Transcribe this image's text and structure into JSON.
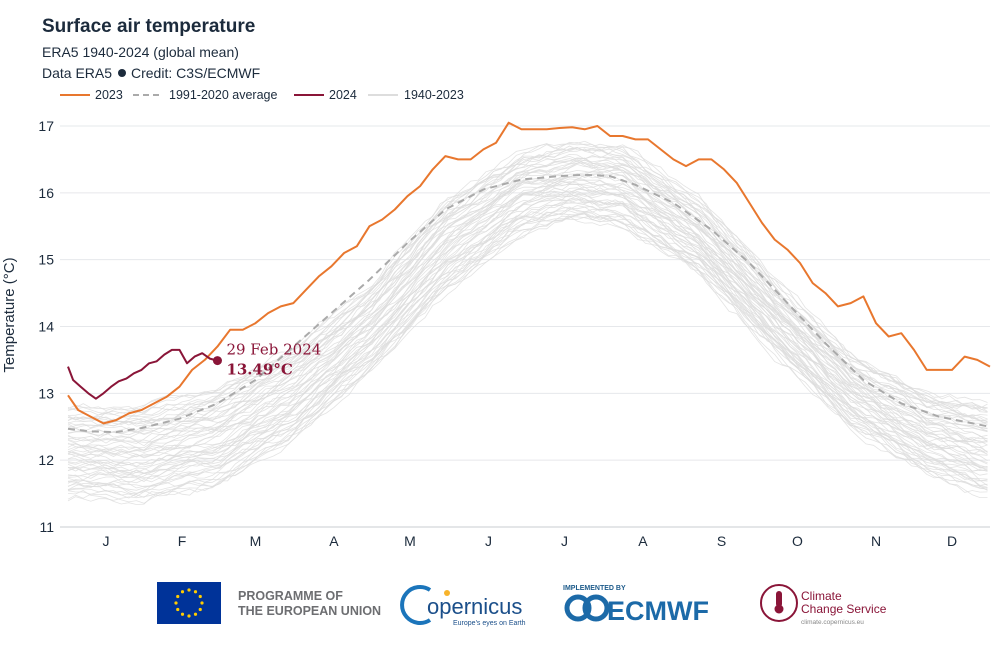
{
  "header": {
    "title": "Surface air temperature",
    "subtitle": "ERA5 1940-2024 (global mean)",
    "credit_prefix": "Data ERA5",
    "credit_suffix": "Credit: C3S/ECMWF"
  },
  "legend": {
    "items": [
      {
        "label": "2023",
        "color": "#e8772e",
        "style": "solid"
      },
      {
        "label": "1991-2020 average",
        "color": "#aaaaaa",
        "style": "dashed"
      },
      {
        "label": "2024",
        "color": "#8a1538",
        "style": "solid"
      },
      {
        "label": "1940-2023",
        "color": "#dddddd",
        "style": "solid"
      }
    ]
  },
  "annotation": {
    "date": "29 Feb 2024",
    "value": "13.49°C"
  },
  "footer": {
    "eu_line1": "PROGRAMME OF",
    "eu_line2": "THE EUROPEAN UNION",
    "copernicus_name": "opernicus",
    "copernicus_tagline": "Europe's eyes on Earth",
    "ecmwf_implemented": "IMPLEMENTED BY",
    "ecmwf_name": "ECMWF",
    "c3s_line1": "Climate",
    "c3s_line2": "Change Service",
    "c3s_url": "climate.copernicus.eu"
  },
  "chart_data": {
    "type": "line",
    "ylabel": "Temperature (°C)",
    "xlabel": "",
    "ylim": [
      11,
      17.2
    ],
    "yticks": [
      11,
      12,
      13,
      14,
      15,
      16,
      17
    ],
    "xlim": [
      1,
      365
    ],
    "month_labels": [
      "J",
      "F",
      "M",
      "A",
      "M",
      "J",
      "J",
      "A",
      "S",
      "O",
      "N",
      "D"
    ],
    "month_label_days": [
      16,
      46,
      75,
      106,
      136,
      167,
      197,
      228,
      259,
      289,
      320,
      350
    ],
    "grid": true,
    "legend_position": "top-left",
    "band_1940_2023": {
      "x": [
        1,
        30,
        60,
        90,
        120,
        150,
        180,
        200,
        220,
        250,
        280,
        310,
        340,
        365
      ],
      "low": [
        11.45,
        11.4,
        11.6,
        12.3,
        13.3,
        14.5,
        15.4,
        15.6,
        15.5,
        14.8,
        13.6,
        12.5,
        11.8,
        11.45
      ],
      "high": [
        12.8,
        12.8,
        13.1,
        13.7,
        14.6,
        15.9,
        16.6,
        16.75,
        16.7,
        15.9,
        14.7,
        13.6,
        13.0,
        12.85
      ]
    },
    "series": [
      {
        "name": "2023",
        "color": "#e8772e",
        "x": [
          1,
          5,
          10,
          15,
          20,
          25,
          30,
          35,
          40,
          45,
          50,
          55,
          60,
          65,
          70,
          75,
          80,
          85,
          90,
          95,
          100,
          105,
          110,
          115,
          120,
          125,
          130,
          135,
          140,
          145,
          150,
          155,
          160,
          165,
          170,
          175,
          180,
          185,
          190,
          195,
          200,
          205,
          210,
          215,
          220,
          225,
          230,
          235,
          240,
          245,
          250,
          255,
          260,
          265,
          270,
          275,
          280,
          285,
          290,
          295,
          300,
          305,
          310,
          315,
          320,
          325,
          330,
          335,
          340,
          345,
          350,
          355,
          360,
          365
        ],
        "y": [
          12.97,
          12.75,
          12.65,
          12.55,
          12.6,
          12.7,
          12.75,
          12.85,
          12.95,
          13.1,
          13.35,
          13.5,
          13.7,
          13.95,
          13.95,
          14.05,
          14.2,
          14.3,
          14.35,
          14.55,
          14.75,
          14.9,
          15.1,
          15.2,
          15.5,
          15.6,
          15.75,
          15.95,
          16.1,
          16.35,
          16.55,
          16.5,
          16.5,
          16.65,
          16.75,
          17.05,
          16.95,
          16.95,
          16.95,
          16.97,
          16.98,
          16.95,
          17.0,
          16.85,
          16.85,
          16.8,
          16.8,
          16.65,
          16.5,
          16.4,
          16.5,
          16.5,
          16.35,
          16.15,
          15.85,
          15.55,
          15.3,
          15.15,
          14.95,
          14.65,
          14.5,
          14.3,
          14.35,
          14.45,
          14.05,
          13.85,
          13.9,
          13.65,
          13.35,
          13.35,
          13.35,
          13.55,
          13.5,
          13.4
        ]
      },
      {
        "name": "1991-2020 average",
        "color": "#aaaaaa",
        "dashed": true,
        "x": [
          1,
          10,
          20,
          30,
          45,
          60,
          75,
          90,
          105,
          120,
          135,
          150,
          165,
          180,
          195,
          205,
          215,
          225,
          240,
          255,
          270,
          285,
          300,
          315,
          330,
          345,
          365
        ],
        "y": [
          12.47,
          12.43,
          12.42,
          12.48,
          12.62,
          12.85,
          13.2,
          13.7,
          14.2,
          14.7,
          15.25,
          15.75,
          16.05,
          16.2,
          16.25,
          16.27,
          16.25,
          16.12,
          15.85,
          15.45,
          14.95,
          14.35,
          13.75,
          13.2,
          12.85,
          12.65,
          12.5
        ]
      },
      {
        "name": "2024",
        "color": "#8a1538",
        "x": [
          1,
          3,
          6,
          9,
          12,
          15,
          18,
          21,
          24,
          27,
          30,
          33,
          36,
          39,
          42,
          45,
          48,
          51,
          54,
          57,
          60
        ],
        "y": [
          13.4,
          13.2,
          13.1,
          13.0,
          12.92,
          13.0,
          13.1,
          13.18,
          13.22,
          13.3,
          13.35,
          13.45,
          13.48,
          13.58,
          13.65,
          13.65,
          13.45,
          13.55,
          13.6,
          13.52,
          13.49
        ]
      }
    ],
    "highlight_point": {
      "x": 60,
      "y": 13.49
    }
  }
}
